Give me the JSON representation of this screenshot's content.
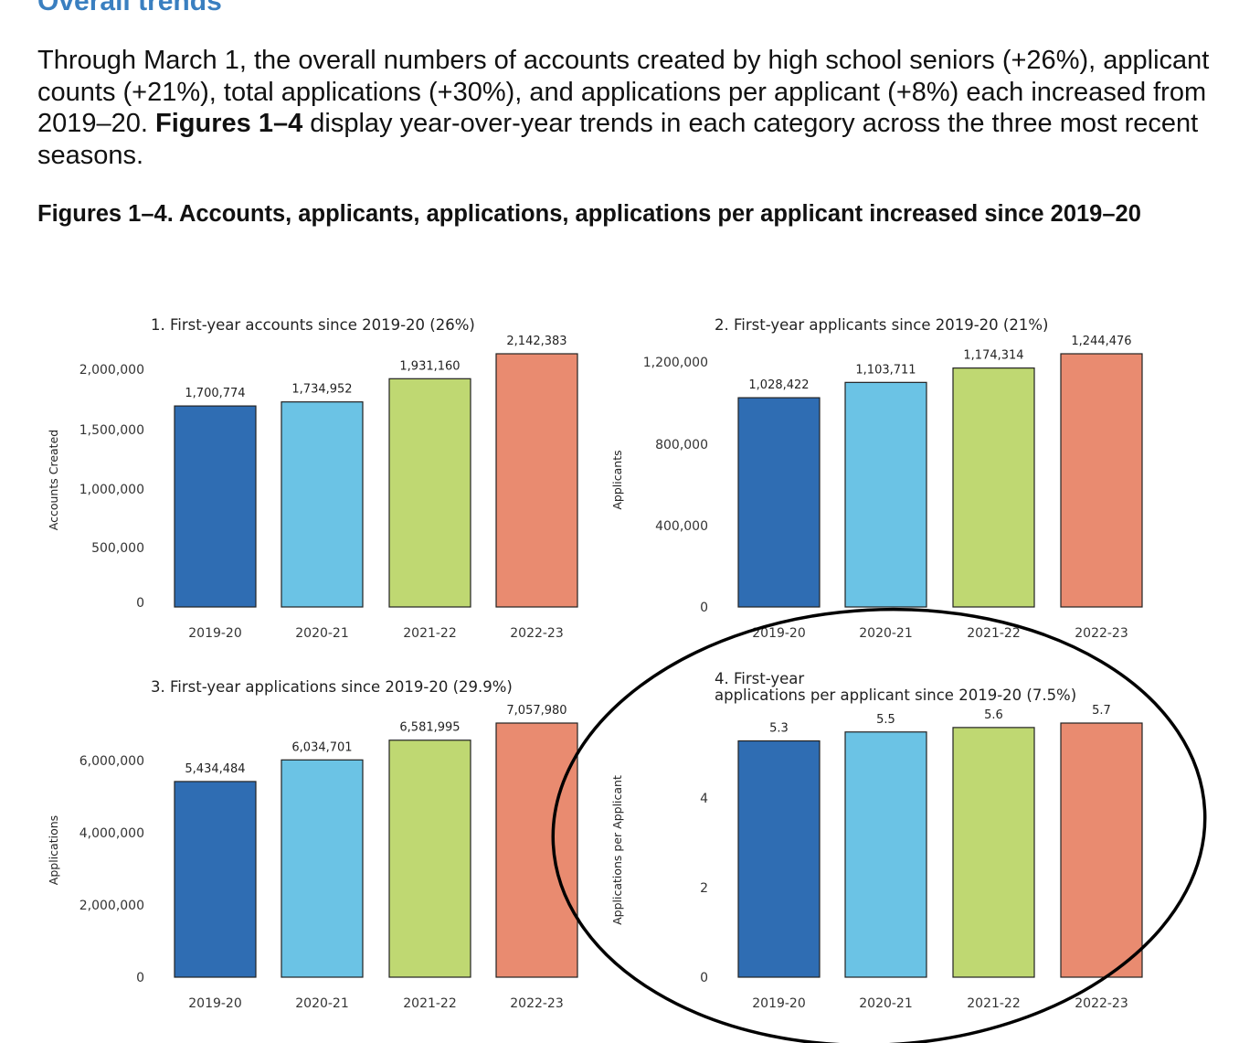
{
  "heading": "Overall trends",
  "intro": {
    "part1": "Through March 1, the overall numbers of accounts created by high school seniors (+26%), applicant counts (+21%), total applications (+30%), and applications per applicant (+8%) each increased from 2019–20. ",
    "bold": "Figures 1–4",
    "part2": " display year-over-year trends in each category across the three most recent seasons."
  },
  "figures_title": "Figures 1–4. Accounts, applicants, applications, applications per applicant increased since 2019–20",
  "colors": {
    "bars": [
      "#2f6db3",
      "#6bc3e5",
      "#bfd872",
      "#e98b70"
    ],
    "heading": "#3a7fc0",
    "annotation_ellipse": "#000000"
  },
  "annotation": "hand-drawn ellipse circling Figure 4",
  "chart_data": [
    {
      "type": "bar",
      "title": "1. First-year accounts since 2019-20 (26%)",
      "ylabel": "Accounts Created",
      "xlabel": "",
      "categories": [
        "2019-20",
        "2020-21",
        "2021-22",
        "2022-23"
      ],
      "values": [
        1700774,
        1734952,
        1931160,
        2142383
      ],
      "value_labels": [
        "1,700,774",
        "1,734,952",
        "1,931,160",
        "2,142,383"
      ],
      "yticks": [
        0,
        500000,
        1000000,
        1500000,
        2000000
      ],
      "ytick_labels": [
        "0",
        "500,000",
        "1,000,000",
        "1,500,000",
        "2,000,000"
      ],
      "ylim": [
        0,
        2142383
      ],
      "grid": false
    },
    {
      "type": "bar",
      "title": "2. First-year applicants since 2019-20 (21%)",
      "ylabel": "Applicants",
      "xlabel": "",
      "categories": [
        "2019-20",
        "2020-21",
        "2021-22",
        "2022-23"
      ],
      "values": [
        1028422,
        1103711,
        1174314,
        1244476
      ],
      "value_labels": [
        "1,028,422",
        "1,103,711",
        "1,174,314",
        "1,244,476"
      ],
      "yticks": [
        0,
        400000,
        800000,
        1200000
      ],
      "ytick_labels": [
        "0",
        "400,000",
        "800,000",
        "1,200,000"
      ],
      "ylim": [
        0,
        1244476
      ],
      "grid": false
    },
    {
      "type": "bar",
      "title": "3. First-year applications since 2019-20 (29.9%)",
      "ylabel": "Applications",
      "xlabel": "",
      "categories": [
        "2019-20",
        "2020-21",
        "2021-22",
        "2022-23"
      ],
      "values": [
        5434484,
        6034701,
        6581995,
        7057980
      ],
      "value_labels": [
        "5,434,484",
        "6,034,701",
        "6,581,995",
        "7,057,980"
      ],
      "yticks": [
        0,
        2000000,
        4000000,
        6000000
      ],
      "ytick_labels": [
        "0",
        "2,000,000",
        "4,000,000",
        "6,000,000"
      ],
      "ylim": [
        0,
        7057980
      ],
      "grid": false
    },
    {
      "type": "bar",
      "title": "4. First-year\napplications per applicant since 2019-20 (7.5%)",
      "ylabel": "Applications per Applicant",
      "xlabel": "",
      "categories": [
        "2019-20",
        "2020-21",
        "2021-22",
        "2022-23"
      ],
      "values": [
        5.3,
        5.5,
        5.6,
        5.7
      ],
      "value_labels": [
        "5.3",
        "5.5",
        "5.6",
        "5.7"
      ],
      "yticks": [
        0,
        2,
        4
      ],
      "ytick_labels": [
        "0",
        "2",
        "4"
      ],
      "ylim": [
        0,
        5.7
      ],
      "grid": false
    }
  ]
}
